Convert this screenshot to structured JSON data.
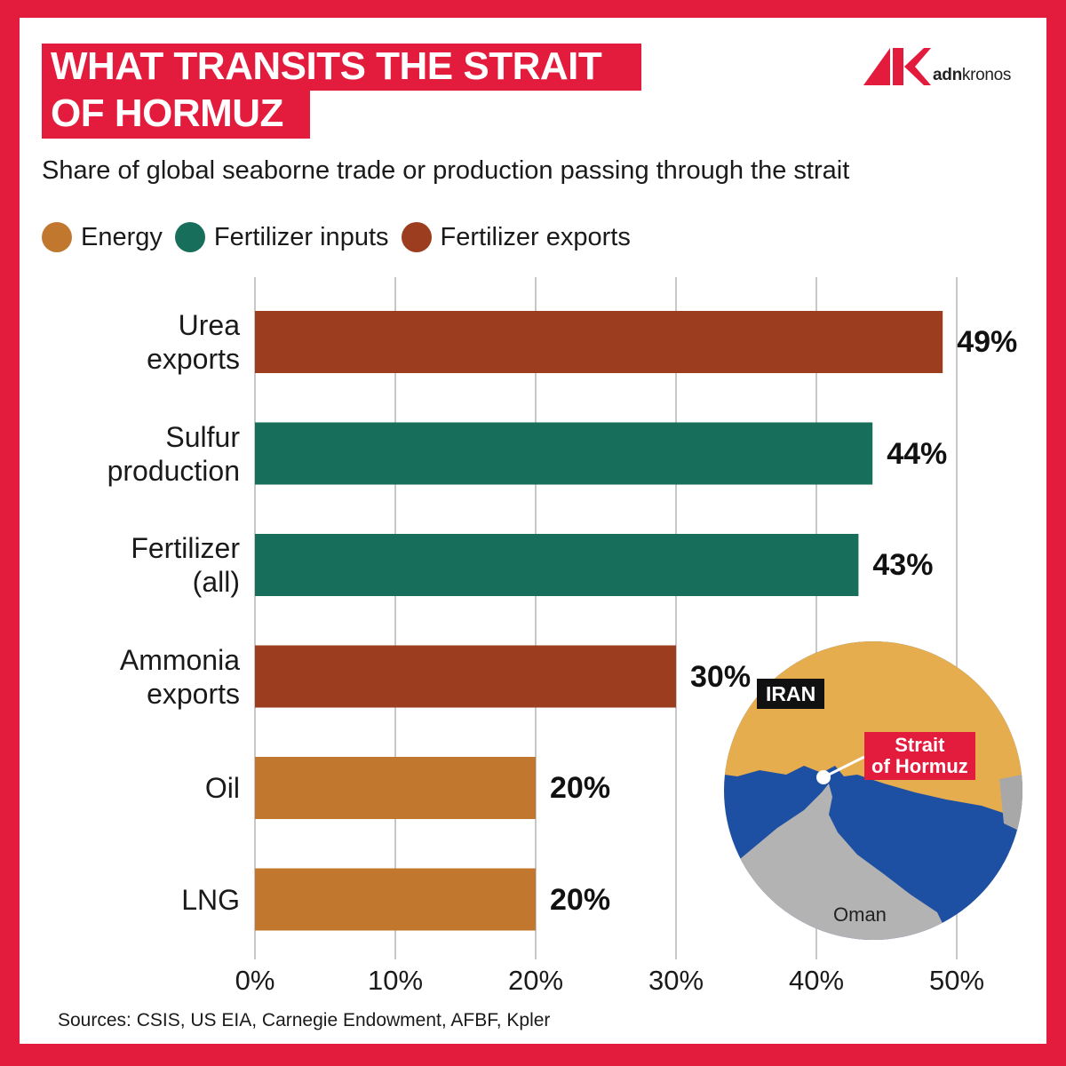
{
  "header": {
    "title_line1": "WHAT TRANSITS THE STRAIT",
    "title_line2": "OF HORMUZ",
    "logo_text_bold": "adn",
    "logo_text_regular": "kronos"
  },
  "colors": {
    "brand_red": "#e31b3c",
    "energy": "#c2772e",
    "fertilizer_inputs": "#166e5b",
    "fertilizer_exports": "#9b3d1e",
    "gridline": "#c8c8c8"
  },
  "map": {
    "country_north": "IRAN",
    "strait_label": "Strait\nof Hormuz",
    "country_south": "Oman"
  },
  "footer": {
    "sources": "Sources: CSIS, US EIA, Carnegie Endowment, AFBF, Kpler"
  },
  "chart_data": {
    "type": "bar",
    "orientation": "horizontal",
    "title": "WHAT TRANSITS THE STRAIT OF HORMUZ",
    "subtitle": "Share of global seaborne trade or production passing through the strait",
    "xlabel": "",
    "ylabel": "",
    "xlim": [
      0,
      50
    ],
    "x_ticks": [
      0,
      10,
      20,
      30,
      40,
      50
    ],
    "x_tick_labels": [
      "0%",
      "10%",
      "20%",
      "30%",
      "40%",
      "50%"
    ],
    "grid": "vertical",
    "legend_position": "top-left",
    "legend": [
      {
        "name": "Energy",
        "color": "#c2772e"
      },
      {
        "name": "Fertilizer inputs",
        "color": "#166e5b"
      },
      {
        "name": "Fertilizer exports",
        "color": "#9b3d1e"
      }
    ],
    "categories": [
      "Urea\nexports",
      "Sulfur\nproduction",
      "Fertilizer\n(all)",
      "Ammonia\nexports",
      "Oil",
      "LNG"
    ],
    "values": [
      49,
      44,
      43,
      30,
      20,
      20
    ],
    "value_labels": [
      "49%",
      "44%",
      "43%",
      "30%",
      "20%",
      "20%"
    ],
    "groups": [
      "Fertilizer exports",
      "Fertilizer inputs",
      "Fertilizer inputs",
      "Fertilizer exports",
      "Energy",
      "Energy"
    ]
  }
}
